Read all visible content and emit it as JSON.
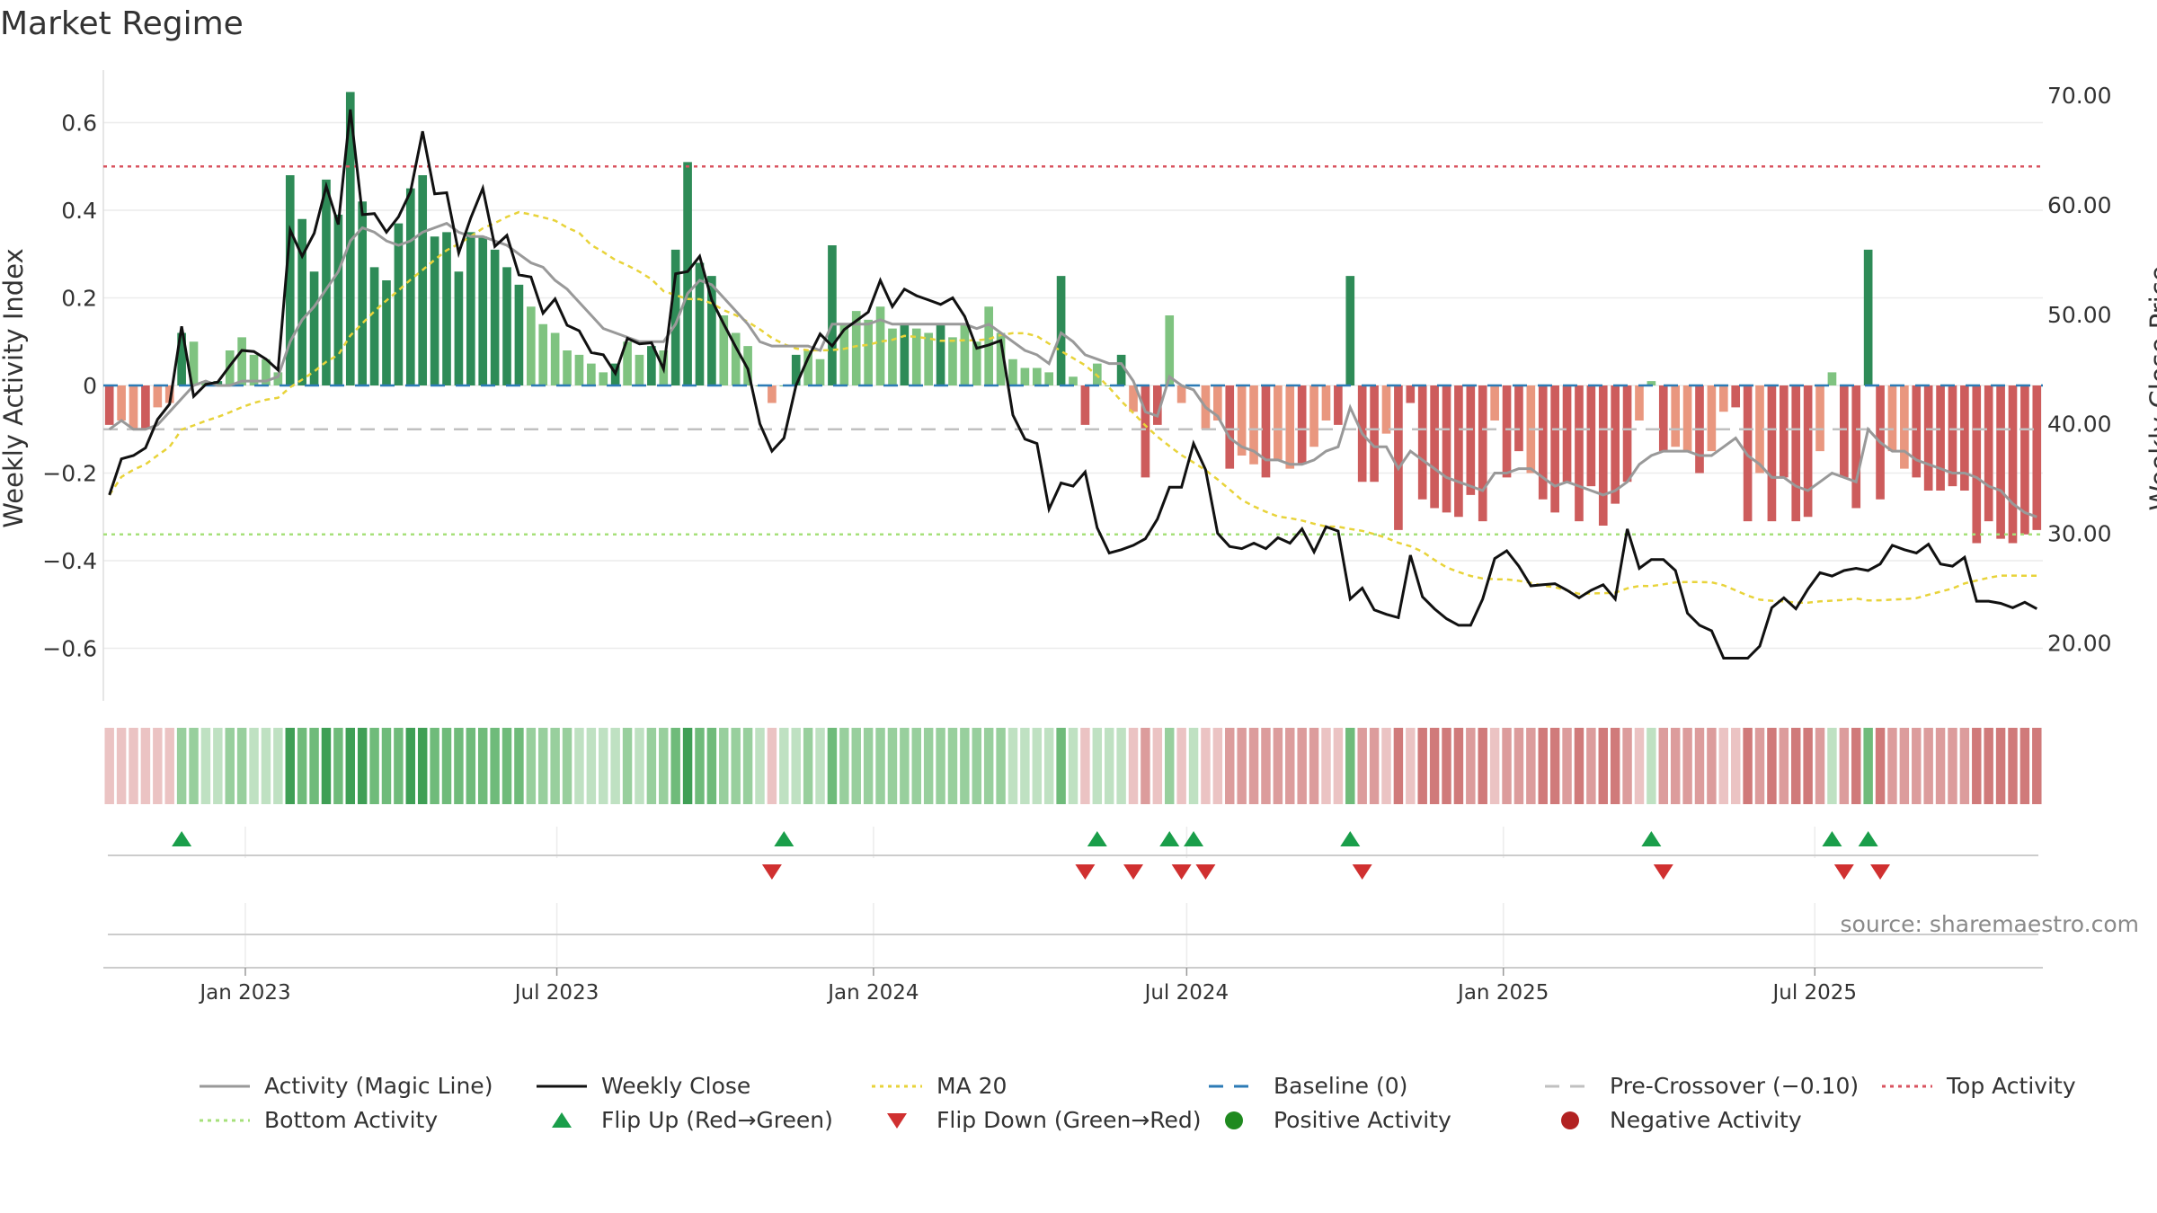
{
  "title": "Market Regime",
  "source": "source: sharemaestro.com",
  "colors": {
    "activity_line": "#999999",
    "weekly_close": "#111111",
    "ma20": "#e8d33a",
    "baseline": "#2c7bb6",
    "pre_crossover": "#c0c0c0",
    "top_activity": "#d9535f",
    "bottom_activity": "#a6e07a",
    "bar_green_strong": "#2e8b57",
    "bar_green_light": "#7fc380",
    "bar_red_strong": "#cd5c5c",
    "bar_red_light": "#e9977f",
    "flip_up": "#1a9e4a",
    "flip_down": "#d03030"
  },
  "legend": [
    {
      "label": "Activity (Magic Line)",
      "kind": "line",
      "color": "#999999"
    },
    {
      "label": "Weekly Close",
      "kind": "line",
      "color": "#111111"
    },
    {
      "label": "MA 20",
      "kind": "dotted",
      "color": "#e8d33a"
    },
    {
      "label": "Baseline (0)",
      "kind": "dashed",
      "color": "#2c7bb6"
    },
    {
      "label": "Pre-Crossover (−0.10)",
      "kind": "dashed",
      "color": "#c0c0c0"
    },
    {
      "label": "Top Activity",
      "kind": "dotted",
      "color": "#d9535f"
    },
    {
      "label": "Bottom Activity",
      "kind": "dotted",
      "color": "#a6e07a"
    },
    {
      "label": "Flip Up (Red→Green)",
      "kind": "tri-up",
      "color": "#1a9e4a"
    },
    {
      "label": "Flip Down (Green→Red)",
      "kind": "tri-down",
      "color": "#d03030"
    },
    {
      "label": "Positive Activity",
      "kind": "dot",
      "color": "#1f8a1f"
    },
    {
      "label": "Negative Activity",
      "kind": "dot",
      "color": "#b22222"
    }
  ],
  "chart_data": {
    "type": "bar",
    "title": "Market Regime",
    "x_start": "2022-10-14",
    "x_interval_days": 7,
    "x_tick_labels": [
      {
        "label": "Jan 2023",
        "date": "2023-01-01"
      },
      {
        "label": "Jul 2023",
        "date": "2023-07-01"
      },
      {
        "label": "Jan 2024",
        "date": "2024-01-01"
      },
      {
        "label": "Jul 2024",
        "date": "2024-07-01"
      },
      {
        "label": "Jan 2025",
        "date": "2025-01-01"
      },
      {
        "label": "Jul 2025",
        "date": "2025-07-01"
      }
    ],
    "ylabel_left": "Weekly Activity Index",
    "ylabel_right": "Weekly Close Price",
    "ylim_left": [
      -0.72,
      0.72
    ],
    "ylim_right": [
      14.7,
      72.3
    ],
    "yticks_left": [
      {
        "value": 0.6,
        "label": "0.6"
      },
      {
        "value": 0.4,
        "label": "0.4"
      },
      {
        "value": 0.2,
        "label": "0.2"
      },
      {
        "value": 0,
        "label": "0"
      },
      {
        "value": -0.2,
        "label": "−0.2"
      },
      {
        "value": -0.4,
        "label": "−0.4"
      },
      {
        "value": -0.6,
        "label": "−0.6"
      }
    ],
    "yticks_right": [
      {
        "value": 70,
        "label": "70.00"
      },
      {
        "value": 60,
        "label": "60.00"
      },
      {
        "value": 50,
        "label": "50.00"
      },
      {
        "value": 40,
        "label": "40.00"
      },
      {
        "value": 30,
        "label": "30.00"
      },
      {
        "value": 20,
        "label": "20.00"
      }
    ],
    "reference_lines": {
      "top_activity": 0.5,
      "bottom_activity": -0.34,
      "pre_crossover": -0.1,
      "baseline": 0
    },
    "grid": true,
    "legend_position": "bottom",
    "activity": [
      -0.09,
      -0.08,
      -0.1,
      -0.1,
      -0.05,
      -0.04,
      0.12,
      0.1,
      0.01,
      0.01,
      0.08,
      0.11,
      0.07,
      0.06,
      0.03,
      0.48,
      0.38,
      0.26,
      0.47,
      0.39,
      0.67,
      0.42,
      0.27,
      0.24,
      0.37,
      0.45,
      0.48,
      0.34,
      0.35,
      0.26,
      0.35,
      0.34,
      0.31,
      0.27,
      0.23,
      0.18,
      0.14,
      0.12,
      0.08,
      0.07,
      0.05,
      0.03,
      0.05,
      0.1,
      0.07,
      0.09,
      0.08,
      0.31,
      0.51,
      0.28,
      0.25,
      0.16,
      0.12,
      0.09,
      0.0,
      -0.04,
      0.0,
      0.07,
      0.08,
      0.06,
      0.32,
      0.14,
      0.17,
      0.15,
      0.18,
      0.13,
      0.14,
      0.13,
      0.12,
      0.14,
      0.11,
      0.14,
      0.1,
      0.18,
      0.12,
      0.06,
      0.04,
      0.04,
      0.03,
      0.25,
      0.02,
      -0.09,
      0.05,
      0.0,
      0.07,
      -0.06,
      -0.21,
      -0.09,
      0.16,
      -0.04,
      0.0,
      -0.1,
      -0.08,
      -0.19,
      -0.16,
      -0.18,
      -0.21,
      -0.17,
      -0.19,
      -0.18,
      -0.14,
      -0.08,
      -0.09,
      0.25,
      -0.22,
      -0.22,
      -0.11,
      -0.33,
      -0.04,
      -0.26,
      -0.28,
      -0.29,
      -0.3,
      -0.25,
      -0.31,
      -0.08,
      -0.21,
      -0.15,
      -0.2,
      -0.26,
      -0.29,
      -0.22,
      -0.31,
      -0.23,
      -0.32,
      -0.27,
      -0.22,
      -0.08,
      0.01,
      -0.15,
      -0.14,
      -0.15,
      -0.2,
      -0.15,
      -0.06,
      -0.05,
      -0.31,
      -0.2,
      -0.31,
      -0.21,
      -0.31,
      -0.3,
      -0.15,
      0.03,
      -0.21,
      -0.28,
      0.31,
      -0.26,
      -0.15,
      -0.19,
      -0.21,
      -0.24,
      -0.24,
      -0.23,
      -0.24,
      -0.36,
      -0.31,
      -0.35,
      -0.36,
      -0.34,
      -0.33
    ],
    "magic_line": [
      -0.1,
      -0.08,
      -0.1,
      -0.1,
      -0.09,
      -0.06,
      -0.03,
      0.0,
      0.01,
      0.0,
      0.0,
      0.01,
      0.01,
      0.01,
      0.02,
      0.1,
      0.15,
      0.18,
      0.22,
      0.26,
      0.33,
      0.36,
      0.35,
      0.33,
      0.32,
      0.33,
      0.35,
      0.36,
      0.37,
      0.35,
      0.34,
      0.34,
      0.33,
      0.32,
      0.3,
      0.28,
      0.27,
      0.24,
      0.22,
      0.19,
      0.16,
      0.13,
      0.12,
      0.11,
      0.1,
      0.1,
      0.1,
      0.14,
      0.21,
      0.24,
      0.23,
      0.2,
      0.17,
      0.14,
      0.1,
      0.09,
      0.09,
      0.09,
      0.09,
      0.08,
      0.14,
      0.14,
      0.14,
      0.14,
      0.15,
      0.14,
      0.14,
      0.14,
      0.14,
      0.14,
      0.14,
      0.14,
      0.13,
      0.14,
      0.12,
      0.1,
      0.08,
      0.07,
      0.05,
      0.12,
      0.1,
      0.07,
      0.06,
      0.05,
      0.05,
      0.01,
      -0.06,
      -0.07,
      0.02,
      0.0,
      -0.01,
      -0.05,
      -0.07,
      -0.12,
      -0.14,
      -0.15,
      -0.17,
      -0.17,
      -0.18,
      -0.18,
      -0.17,
      -0.15,
      -0.14,
      -0.05,
      -0.11,
      -0.14,
      -0.14,
      -0.19,
      -0.15,
      -0.17,
      -0.19,
      -0.21,
      -0.22,
      -0.23,
      -0.24,
      -0.2,
      -0.2,
      -0.19,
      -0.19,
      -0.21,
      -0.23,
      -0.22,
      -0.23,
      -0.24,
      -0.25,
      -0.24,
      -0.22,
      -0.18,
      -0.16,
      -0.15,
      -0.15,
      -0.15,
      -0.16,
      -0.16,
      -0.14,
      -0.12,
      -0.16,
      -0.18,
      -0.21,
      -0.21,
      -0.23,
      -0.24,
      -0.22,
      -0.2,
      -0.21,
      -0.22,
      -0.1,
      -0.13,
      -0.15,
      -0.15,
      -0.17,
      -0.18,
      -0.19,
      -0.2,
      -0.2,
      -0.21,
      -0.23,
      -0.24,
      -0.27,
      -0.29,
      -0.3
    ],
    "weekly_close": [
      33.5,
      36.8,
      37.1,
      37.8,
      40.4,
      41.8,
      48.9,
      42.5,
      43.6,
      43.8,
      45.3,
      46.7,
      46.6,
      45.9,
      44.9,
      57.7,
      55.3,
      57.4,
      61.7,
      58.2,
      68.7,
      59.1,
      59.2,
      57.5,
      58.9,
      61.2,
      66.7,
      61.0,
      61.1,
      55.6,
      58.8,
      61.5,
      56.2,
      57.2,
      53.6,
      53.4,
      50.1,
      51.4,
      49.0,
      48.5,
      46.5,
      46.3,
      44.6,
      47.8,
      47.3,
      47.4,
      45.0,
      53.7,
      53.9,
      55.3,
      51.3,
      49.1,
      47.0,
      45.0,
      40.0,
      37.5,
      38.7,
      43.5,
      46.0,
      48.2,
      47.1,
      48.6,
      49.4,
      50.2,
      53.1,
      50.7,
      52.3,
      51.7,
      51.3,
      50.9,
      51.5,
      49.8,
      46.9,
      47.2,
      47.6,
      40.8,
      38.6,
      38.2,
      32.2,
      34.6,
      34.3,
      35.6,
      30.5,
      28.2,
      28.5,
      28.9,
      29.5,
      31.3,
      34.2,
      34.2,
      38.2,
      35.8,
      30.0,
      28.8,
      28.6,
      29.1,
      28.6,
      29.6,
      29.1,
      30.4,
      28.3,
      30.6,
      30.2,
      24.0,
      25.0,
      23.0,
      22.6,
      22.3,
      28.0,
      24.2,
      23.1,
      22.2,
      21.6,
      21.6,
      24.0,
      27.7,
      28.4,
      27.0,
      25.2,
      25.3,
      25.4,
      24.8,
      24.1,
      24.8,
      25.3,
      24.0,
      30.4,
      26.8,
      27.6,
      27.6,
      26.6,
      22.7,
      21.6,
      21.1,
      18.6,
      18.6,
      18.6,
      19.7,
      23.2,
      24.1,
      23.1,
      24.9,
      26.4,
      26.1,
      26.6,
      26.8,
      26.6,
      27.2,
      28.9,
      28.5,
      28.2,
      29.0,
      27.2,
      27.0,
      27.8,
      23.8,
      23.8,
      23.6,
      23.2,
      23.7,
      23.1
    ]
  }
}
